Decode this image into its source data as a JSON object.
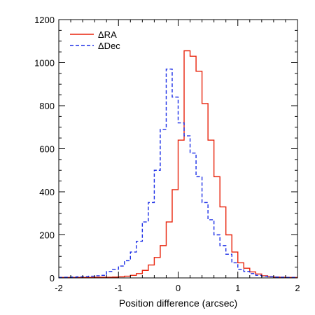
{
  "chart_data": {
    "type": "histogram",
    "title": "",
    "xlabel": "Position difference (arcsec)",
    "ylabel": "",
    "xlim": [
      -2,
      2
    ],
    "ylim": [
      0,
      1200
    ],
    "xticks": [
      "-2",
      "-1",
      "0",
      "1",
      "2"
    ],
    "yticks": [
      "0",
      "200",
      "400",
      "600",
      "800",
      "1000",
      "1200"
    ],
    "xtick_values": [
      -2,
      -1,
      0,
      1,
      2
    ],
    "ytick_values": [
      0,
      200,
      400,
      600,
      800,
      1000,
      1200
    ],
    "grid": false,
    "legend_position": "top-left",
    "bin_width": 0.1,
    "bin_edges_start": -2.0,
    "series": [
      {
        "name": "ΔRA",
        "style": "solid",
        "color": "#e8230b",
        "values": [
          2,
          2,
          2,
          2,
          2,
          2,
          3,
          3,
          3,
          4,
          5,
          8,
          12,
          20,
          35,
          60,
          95,
          150,
          260,
          410,
          640,
          1055,
          1030,
          960,
          810,
          640,
          470,
          330,
          200,
          120,
          70,
          45,
          28,
          18,
          10,
          6,
          4,
          3,
          2,
          2
        ]
      },
      {
        "name": "ΔDec",
        "style": "dashed",
        "color": "#1b2ee6",
        "values": [
          2,
          3,
          4,
          5,
          6,
          8,
          10,
          12,
          30,
          40,
          55,
          80,
          120,
          170,
          260,
          350,
          500,
          690,
          970,
          840,
          720,
          660,
          580,
          470,
          350,
          270,
          200,
          150,
          110,
          70,
          40,
          30,
          20,
          12,
          8,
          5,
          4,
          3,
          2,
          2
        ]
      }
    ]
  }
}
